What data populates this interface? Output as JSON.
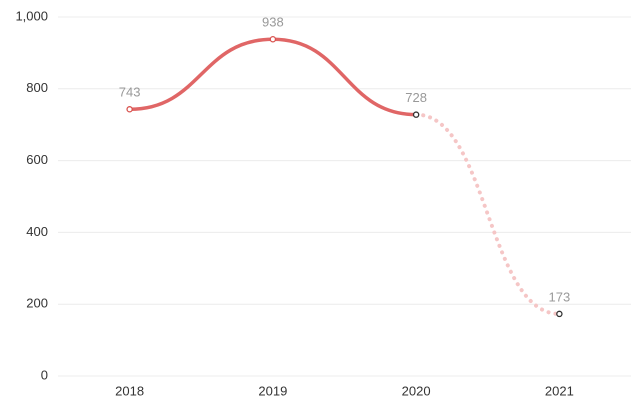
{
  "chart_data": {
    "type": "line",
    "categories": [
      "2018",
      "2019",
      "2020",
      "2021"
    ],
    "values": [
      743,
      938,
      728,
      173
    ],
    "color": "#e06666",
    "segment_styles": [
      "solid",
      "solid",
      "dotted"
    ],
    "segment_colors": [
      "#e06666",
      "#e06666",
      "#f5c6c6"
    ],
    "marker_colors": [
      "#d9534f",
      "#d9534f",
      "#333333",
      "#333333"
    ],
    "ylim": [
      0,
      1000
    ],
    "yticks": [
      0,
      200,
      400,
      600,
      800,
      {
        "value": 1000,
        "label": "1,000"
      }
    ],
    "grid": true
  }
}
